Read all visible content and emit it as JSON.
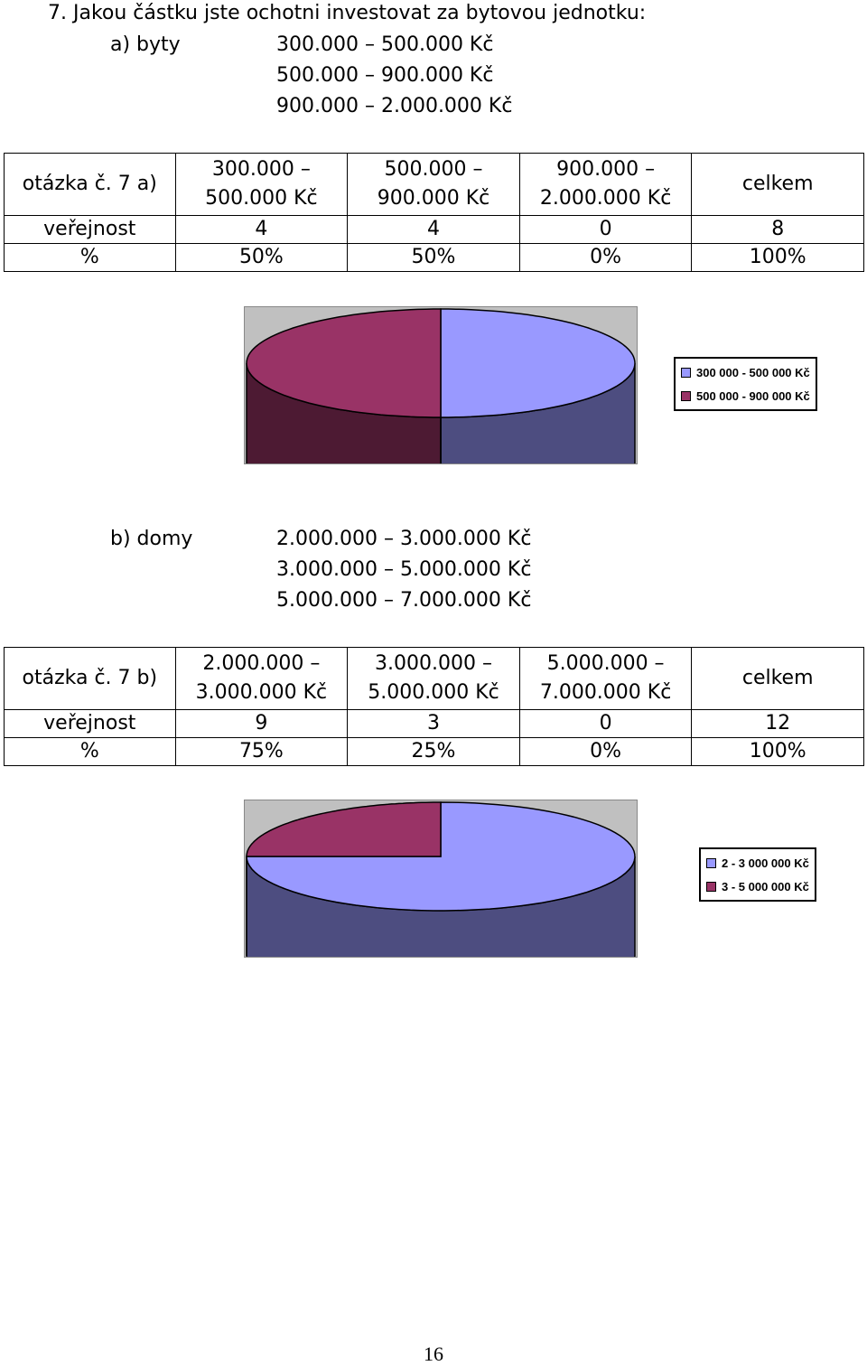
{
  "question": "7.  Jakou částku jste ochotni investovat za bytovou jednotku:",
  "section_a": {
    "label": "a)  byty",
    "options": [
      "300.000 – 500.000 Kč",
      "500.000 – 900.000 Kč",
      "900.000 – 2.000.000 Kč"
    ],
    "table": {
      "header": [
        "otázka č. 7 a)",
        "300.000 –\n500.000 Kč",
        "500.000 –\n900.000 Kč",
        "900.000 –\n2.000.000 Kč",
        "celkem"
      ],
      "rows": [
        [
          "veřejnost",
          "4",
          "4",
          "0",
          "8"
        ],
        [
          "%",
          "50%",
          "50%",
          "0%",
          "100%"
        ]
      ]
    },
    "chart_data": {
      "type": "pie",
      "labels": [
        "300 000 - 500 000 Kč",
        "500 000 - 900 000 Kč"
      ],
      "values": [
        50,
        50
      ],
      "colors": [
        "#9999ff",
        "#993366"
      ],
      "legend_position": "right"
    }
  },
  "section_b": {
    "label": "b)  domy",
    "options": [
      "2.000.000 – 3.000.000 Kč",
      "3.000.000 – 5.000.000 Kč",
      "5.000.000 – 7.000.000 Kč"
    ],
    "table": {
      "header": [
        "otázka č. 7 b)",
        "2.000.000 –\n3.000.000 Kč",
        "3.000.000 –\n5.000.000 Kč",
        "5.000.000 –\n7.000.000 Kč",
        "celkem"
      ],
      "rows": [
        [
          "veřejnost",
          "9",
          "3",
          "0",
          "12"
        ],
        [
          "%",
          "75%",
          "25%",
          "0%",
          "100%"
        ]
      ]
    },
    "chart_data": {
      "type": "pie",
      "labels": [
        "2 - 3 000 000 Kč",
        "3 - 5 000 000 Kč"
      ],
      "values": [
        75,
        25
      ],
      "colors": [
        "#9999ff",
        "#993366"
      ],
      "legend_position": "right"
    }
  },
  "page_number": "16"
}
